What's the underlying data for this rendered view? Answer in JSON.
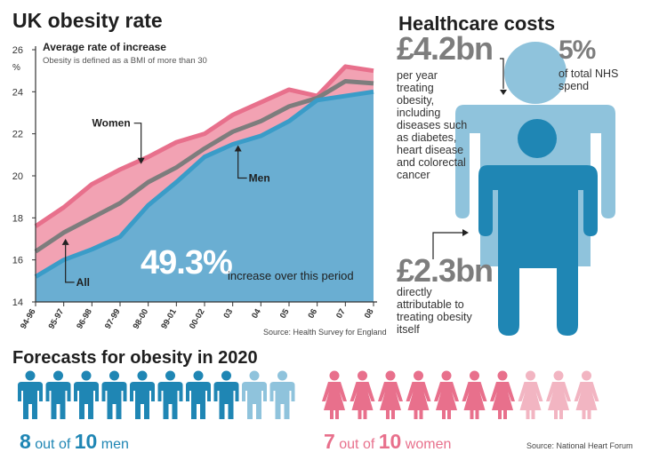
{
  "left_title": "UK obesity rate",
  "right_title": "Healthcare costs",
  "chart_data": {
    "type": "area",
    "title": "Average rate of increase",
    "subtitle": "Obesity is defined as a BMI of more than 30",
    "ylabel": "%",
    "ylim": [
      14,
      26
    ],
    "y_ticks": [
      "14",
      "16",
      "18",
      "20",
      "22",
      "24",
      "26"
    ],
    "categories": [
      "94-96",
      "95-97",
      "96-98",
      "97-99",
      "98-00",
      "99-01",
      "00-02",
      "03",
      "04",
      "05",
      "06",
      "07",
      "08"
    ],
    "series": [
      {
        "name": "Women",
        "values": [
          17.6,
          18.5,
          19.6,
          20.3,
          20.9,
          21.6,
          22.0,
          22.9,
          23.5,
          24.1,
          23.8,
          25.2,
          25.0
        ]
      },
      {
        "name": "All",
        "values": [
          16.4,
          17.3,
          18.0,
          18.7,
          19.7,
          20.4,
          21.3,
          22.1,
          22.6,
          23.3,
          23.7,
          24.5,
          24.4
        ]
      },
      {
        "name": "Men",
        "values": [
          15.2,
          16.0,
          16.5,
          17.1,
          18.6,
          19.7,
          20.9,
          21.5,
          21.9,
          22.6,
          23.6,
          23.8,
          24.0
        ]
      }
    ],
    "colors": {
      "women": "#e8708c",
      "all": "#7d7d7d",
      "men": "#3a9cc8",
      "men_fill": "#6aaed2",
      "women_fill": "#f2a2b3"
    },
    "annotations": [
      {
        "label": "Women",
        "series": "Women"
      },
      {
        "label": "Men",
        "series": "Men"
      },
      {
        "label": "All",
        "series": "All"
      }
    ],
    "highlight_value": "49.3%",
    "highlight_text": "increase over this period",
    "source": "Source: Health Survey for England"
  },
  "costs": {
    "treating_value": "£4.2bn",
    "treating_text": "per year treating obesity, including diseases such as diabetes, heart disease and colorectal cancer",
    "nhs_value": "5%",
    "nhs_text": "of total NHS spend",
    "direct_value": "£2.3bn",
    "direct_text": "directly attributable to treating obesity itself",
    "colors": {
      "outer_figure": "#8fc3dc",
      "inner_figure": "#1f86b4"
    }
  },
  "forecast": {
    "title": "Forecasts for obesity in 2020",
    "men_obese": 8,
    "men_total": 10,
    "women_obese": 7,
    "women_total": 10,
    "men_num": "8",
    "men_mid": "out of",
    "men_total_text": "10",
    "men_word": "men",
    "women_num": "7",
    "women_mid": "out of",
    "women_total_text": "10",
    "women_word": "women",
    "colors": {
      "men_dark": "#1f86b4",
      "men_light": "#8fc3dc",
      "women_dark": "#e8708c",
      "women_light": "#f2b5c2"
    },
    "source": "Source: National Heart Forum"
  }
}
